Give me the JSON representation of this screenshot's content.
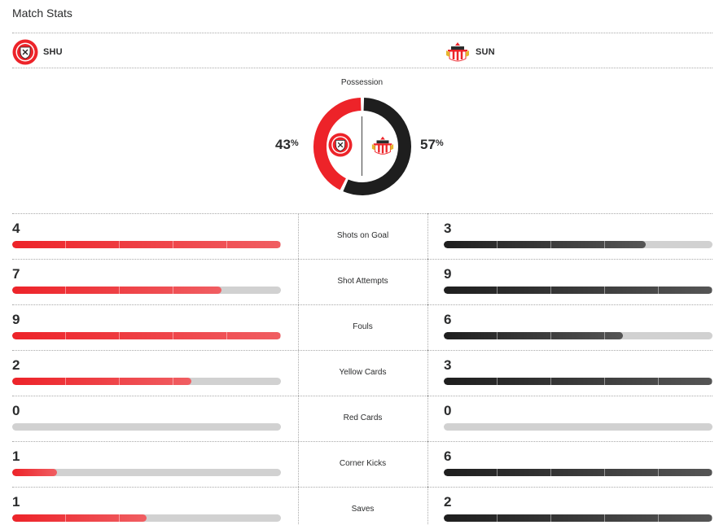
{
  "header": {
    "title": "Match Stats"
  },
  "teams": {
    "home": {
      "abbr": "SHU",
      "color": "#ed2329"
    },
    "away": {
      "abbr": "SUN",
      "color": "#1e1e1e"
    }
  },
  "possession": {
    "label": "Possession",
    "home_pct": 43,
    "away_pct": 57,
    "home_display": "43",
    "away_display": "57",
    "unit": "%"
  },
  "stats": [
    {
      "name": "Shots on Goal",
      "home": "4",
      "away": "3",
      "home_fill": 1.0,
      "away_fill": 0.75
    },
    {
      "name": "Shot Attempts",
      "home": "7",
      "away": "9",
      "home_fill": 0.778,
      "away_fill": 1.0
    },
    {
      "name": "Fouls",
      "home": "9",
      "away": "6",
      "home_fill": 1.0,
      "away_fill": 0.667
    },
    {
      "name": "Yellow Cards",
      "home": "2",
      "away": "3",
      "home_fill": 0.667,
      "away_fill": 1.0
    },
    {
      "name": "Red Cards",
      "home": "0",
      "away": "0",
      "home_fill": 0,
      "away_fill": 0
    },
    {
      "name": "Corner Kicks",
      "home": "1",
      "away": "6",
      "home_fill": 0.167,
      "away_fill": 1.0
    },
    {
      "name": "Saves",
      "home": "1",
      "away": "2",
      "home_fill": 0.5,
      "away_fill": 1.0
    }
  ]
}
